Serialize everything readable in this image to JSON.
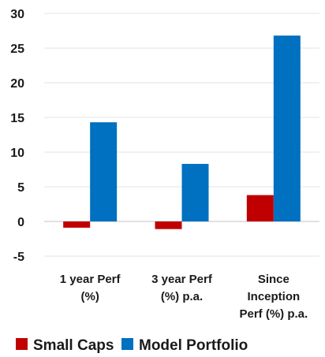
{
  "chart_data": {
    "type": "bar",
    "categories": [
      [
        "1 year Perf",
        "(%)"
      ],
      [
        "3 year Perf",
        "(%) p.a."
      ],
      [
        "Since",
        "Inception",
        "Perf (%) p.a."
      ]
    ],
    "series": [
      {
        "name": "Small Caps",
        "color": "#c00000",
        "values": [
          -0.9,
          -1.1,
          3.8
        ]
      },
      {
        "name": "Model Portfolio",
        "color": "#0070c0",
        "values": [
          14.3,
          8.3,
          26.8
        ]
      }
    ],
    "ylim": [
      -5,
      30
    ],
    "yticks": [
      -5,
      0,
      5,
      10,
      15,
      20,
      25,
      30
    ],
    "grid": true,
    "legend": "bottom"
  }
}
